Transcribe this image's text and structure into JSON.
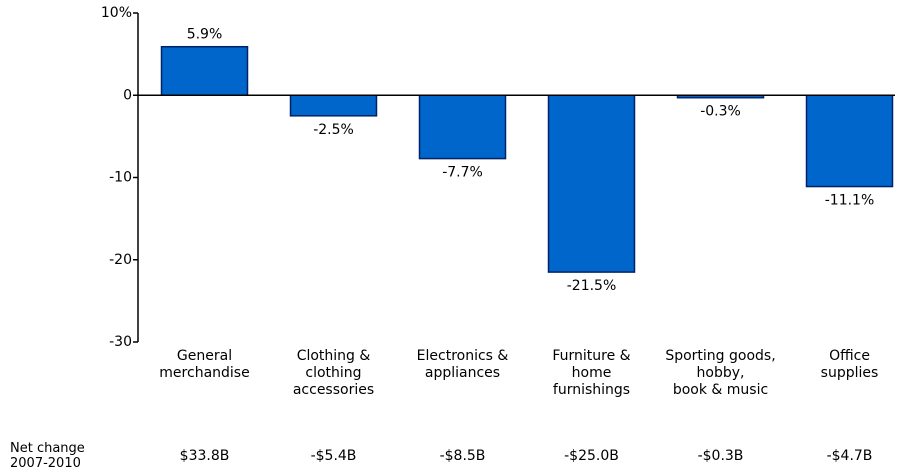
{
  "chart_data": {
    "type": "bar",
    "categories": [
      "General\nmerchandise",
      "Clothing &\nclothing\naccessories",
      "Electronics &\nappliances",
      "Furniture &\nhome\nfurnishings",
      "Sporting goods,\nhobby,\nbook & music",
      "Office\nsupplies"
    ],
    "values": [
      5.9,
      -2.5,
      -7.7,
      -21.5,
      -0.3,
      -11.1
    ],
    "value_labels": [
      "5.9%",
      "-2.5%",
      "-7.7%",
      "-21.5%",
      "-0.3%",
      "-11.1%"
    ],
    "color": "#0066cc",
    "ylim": [
      -30,
      10
    ],
    "yticks": [
      {
        "value": 10,
        "label": "10%"
      },
      0,
      -10,
      -20,
      -30
    ],
    "net_change": {
      "label": "Net change\n2007-2010",
      "values": [
        "$33.8B",
        "-$5.4B",
        "-$8.5B",
        "-$25.0B",
        "-$0.3B",
        "-$4.7B"
      ]
    }
  }
}
